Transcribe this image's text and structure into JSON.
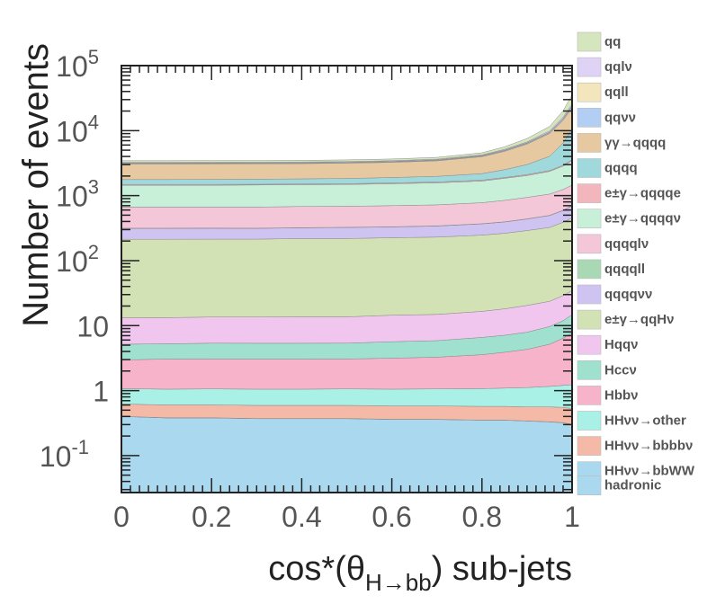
{
  "chart_data": {
    "type": "area",
    "stacked": true,
    "histogram": true,
    "xlabel": "cos*(θ_{H→bb}) sub-jets",
    "ylabel": "Number of events",
    "xlim": [
      0,
      1
    ],
    "ylim": [
      0.027,
      100000
    ],
    "yscale": "log",
    "legend_placement": "right",
    "x_ticks": [
      {
        "v": 0,
        "label": "0"
      },
      {
        "v": 0.2,
        "label": "0.2"
      },
      {
        "v": 0.4,
        "label": "0.4"
      },
      {
        "v": 0.6,
        "label": "0.6"
      },
      {
        "v": 0.8,
        "label": "0.8"
      },
      {
        "v": 1,
        "label": "1"
      }
    ],
    "y_ticks": [
      {
        "v": 0.1,
        "base": "10",
        "exp": "-1"
      },
      {
        "v": 1,
        "base": "1",
        "exp": ""
      },
      {
        "v": 10,
        "base": "10",
        "exp": ""
      },
      {
        "v": 100,
        "base": "10",
        "exp": "2"
      },
      {
        "v": 1000,
        "base": "10",
        "exp": "3"
      },
      {
        "v": 10000,
        "base": "10",
        "exp": "4"
      },
      {
        "v": 100000,
        "base": "10",
        "exp": "5"
      }
    ],
    "x": [
      0.0,
      0.1,
      0.2,
      0.3,
      0.4,
      0.5,
      0.6,
      0.7,
      0.8,
      0.85,
      0.9,
      0.95,
      0.98,
      1.0
    ],
    "series": [
      {
        "name": "hadronic",
        "color": "#a9d8ef",
        "values": [
          0.4,
          0.38,
          0.38,
          0.37,
          0.37,
          0.37,
          0.36,
          0.36,
          0.35,
          0.35,
          0.34,
          0.33,
          0.32,
          0.3
        ]
      },
      {
        "name": "HHνν→bbWW",
        "color": "#a9d8ef",
        "values": [
          0.002,
          0.002,
          0.002,
          0.002,
          0.002,
          0.002,
          0.002,
          0.002,
          0.002,
          0.002,
          0.002,
          0.002,
          0.002,
          0.002
        ]
      },
      {
        "name": "HHνν→bbbbν",
        "color": "#f5b9a8",
        "values": [
          0.22,
          0.22,
          0.22,
          0.22,
          0.22,
          0.22,
          0.22,
          0.22,
          0.22,
          0.22,
          0.22,
          0.23,
          0.23,
          0.23
        ]
      },
      {
        "name": "HHνν→other",
        "color": "#a9f0e6",
        "values": [
          0.45,
          0.45,
          0.46,
          0.46,
          0.46,
          0.47,
          0.47,
          0.48,
          0.5,
          0.52,
          0.55,
          0.6,
          0.65,
          0.7
        ]
      },
      {
        "name": "Hbbν",
        "color": "#f6b3c9",
        "values": [
          1.9,
          2.0,
          2.0,
          2.0,
          2.0,
          2.0,
          2.1,
          2.2,
          2.5,
          2.8,
          3.2,
          4.0,
          5.2,
          6.5
        ]
      },
      {
        "name": "Hccν",
        "color": "#9fe0cf",
        "values": [
          2.2,
          2.2,
          2.3,
          2.3,
          2.3,
          2.3,
          2.5,
          2.6,
          3.0,
          3.2,
          3.6,
          4.5,
          5.5,
          7.0
        ]
      },
      {
        "name": "Hqqν",
        "color": "#f0c6ef",
        "values": [
          8.0,
          8.0,
          8.2,
          8.2,
          8.3,
          8.3,
          8.8,
          9.0,
          10.0,
          11.0,
          12.5,
          14.0,
          17.0,
          20.0
        ]
      },
      {
        "name": "e±γ→qqHν",
        "color": "#d2e2b5",
        "values": [
          200,
          200,
          200,
          200,
          205,
          205,
          210,
          215,
          230,
          245,
          270,
          300,
          360,
          420
        ]
      },
      {
        "name": "qqqqνν",
        "color": "#cfc3f2",
        "values": [
          100,
          100,
          100,
          100,
          100,
          105,
          105,
          110,
          120,
          130,
          145,
          170,
          200,
          240
        ]
      },
      {
        "name": "qqqqll",
        "color": "#a9d8b5",
        "values": [
          2,
          2,
          2,
          2,
          2,
          2,
          2,
          2,
          2.5,
          2.5,
          3,
          3,
          4,
          4
        ]
      },
      {
        "name": "qqqqlν",
        "color": "#f3c6d8",
        "values": [
          350,
          350,
          350,
          350,
          360,
          360,
          370,
          380,
          410,
          450,
          500,
          560,
          650,
          750
        ]
      },
      {
        "name": "e±γ→qqqqν",
        "color": "#c8f0d8",
        "values": [
          780,
          780,
          780,
          790,
          790,
          800,
          820,
          850,
          900,
          1000,
          1100,
          1300,
          1600,
          2000
        ]
      },
      {
        "name": "e±γ→qqqqe",
        "color": "#f3b6bd",
        "values": [
          40,
          40,
          40,
          40,
          40,
          40,
          45,
          45,
          50,
          55,
          60,
          70,
          90,
          110
        ]
      },
      {
        "name": "qqqq",
        "color": "#9fd9dc",
        "values": [
          280,
          280,
          290,
          290,
          300,
          310,
          330,
          360,
          450,
          600,
          900,
          1600,
          3500,
          7000
        ]
      },
      {
        "name": "γγ→qqqq",
        "color": "#e6c9a0",
        "values": [
          1300,
          1300,
          1300,
          1300,
          1300,
          1320,
          1350,
          1450,
          1800,
          2300,
          3200,
          5000,
          8000,
          12000
        ]
      },
      {
        "name": "qqνν",
        "color": "#b3cef3",
        "values": [
          60,
          60,
          60,
          60,
          60,
          60,
          65,
          70,
          90,
          120,
          180,
          300,
          600,
          1000
        ]
      },
      {
        "name": "qqll",
        "color": "#f3e6bc",
        "values": [
          40,
          40,
          40,
          40,
          40,
          40,
          42,
          45,
          55,
          70,
          100,
          160,
          300,
          500
        ]
      },
      {
        "name": "qqlν",
        "color": "#dfd3f5",
        "values": [
          80,
          80,
          80,
          80,
          80,
          80,
          85,
          90,
          110,
          150,
          220,
          380,
          800,
          1500
        ]
      },
      {
        "name": "qq",
        "color": "#d5e6bf",
        "values": [
          200,
          200,
          200,
          200,
          200,
          205,
          215,
          240,
          320,
          480,
          850,
          1700,
          4000,
          10000
        ]
      }
    ],
    "legend": [
      {
        "label": "qq",
        "color": "#d5e6bf"
      },
      {
        "label": "qqlν",
        "color": "#dfd3f5"
      },
      {
        "label": "qqll",
        "color": "#f3e6bc"
      },
      {
        "label": "qqνν",
        "color": "#b3cef3"
      },
      {
        "label": "γγ→qqqq",
        "color": "#e6c9a0"
      },
      {
        "label": "qqqq",
        "color": "#9fd9dc"
      },
      {
        "label": "e±γ→qqqqe",
        "color": "#f3b6bd"
      },
      {
        "label": "e±γ→qqqqν",
        "color": "#c8f0d8"
      },
      {
        "label": "qqqqlν",
        "color": "#f3c6d8"
      },
      {
        "label": "qqqqll",
        "color": "#a9d8b5"
      },
      {
        "label": "qqqqνν",
        "color": "#cfc3f2"
      },
      {
        "label": "e±γ→qqHν",
        "color": "#d2e2b5"
      },
      {
        "label": "Hqqν",
        "color": "#f0c6ef"
      },
      {
        "label": "Hccν",
        "color": "#9fe0cf"
      },
      {
        "label": "Hbbν",
        "color": "#f6b3c9"
      },
      {
        "label": "HHνν→other",
        "color": "#a9f0e6"
      },
      {
        "label": "HHνν→bbbbν",
        "color": "#f5b9a8"
      },
      {
        "label": "HHνν→bbWW",
        "color": "#a9d8ef"
      },
      {
        "label": "hadronic",
        "color": "#a9d8ef"
      }
    ]
  }
}
